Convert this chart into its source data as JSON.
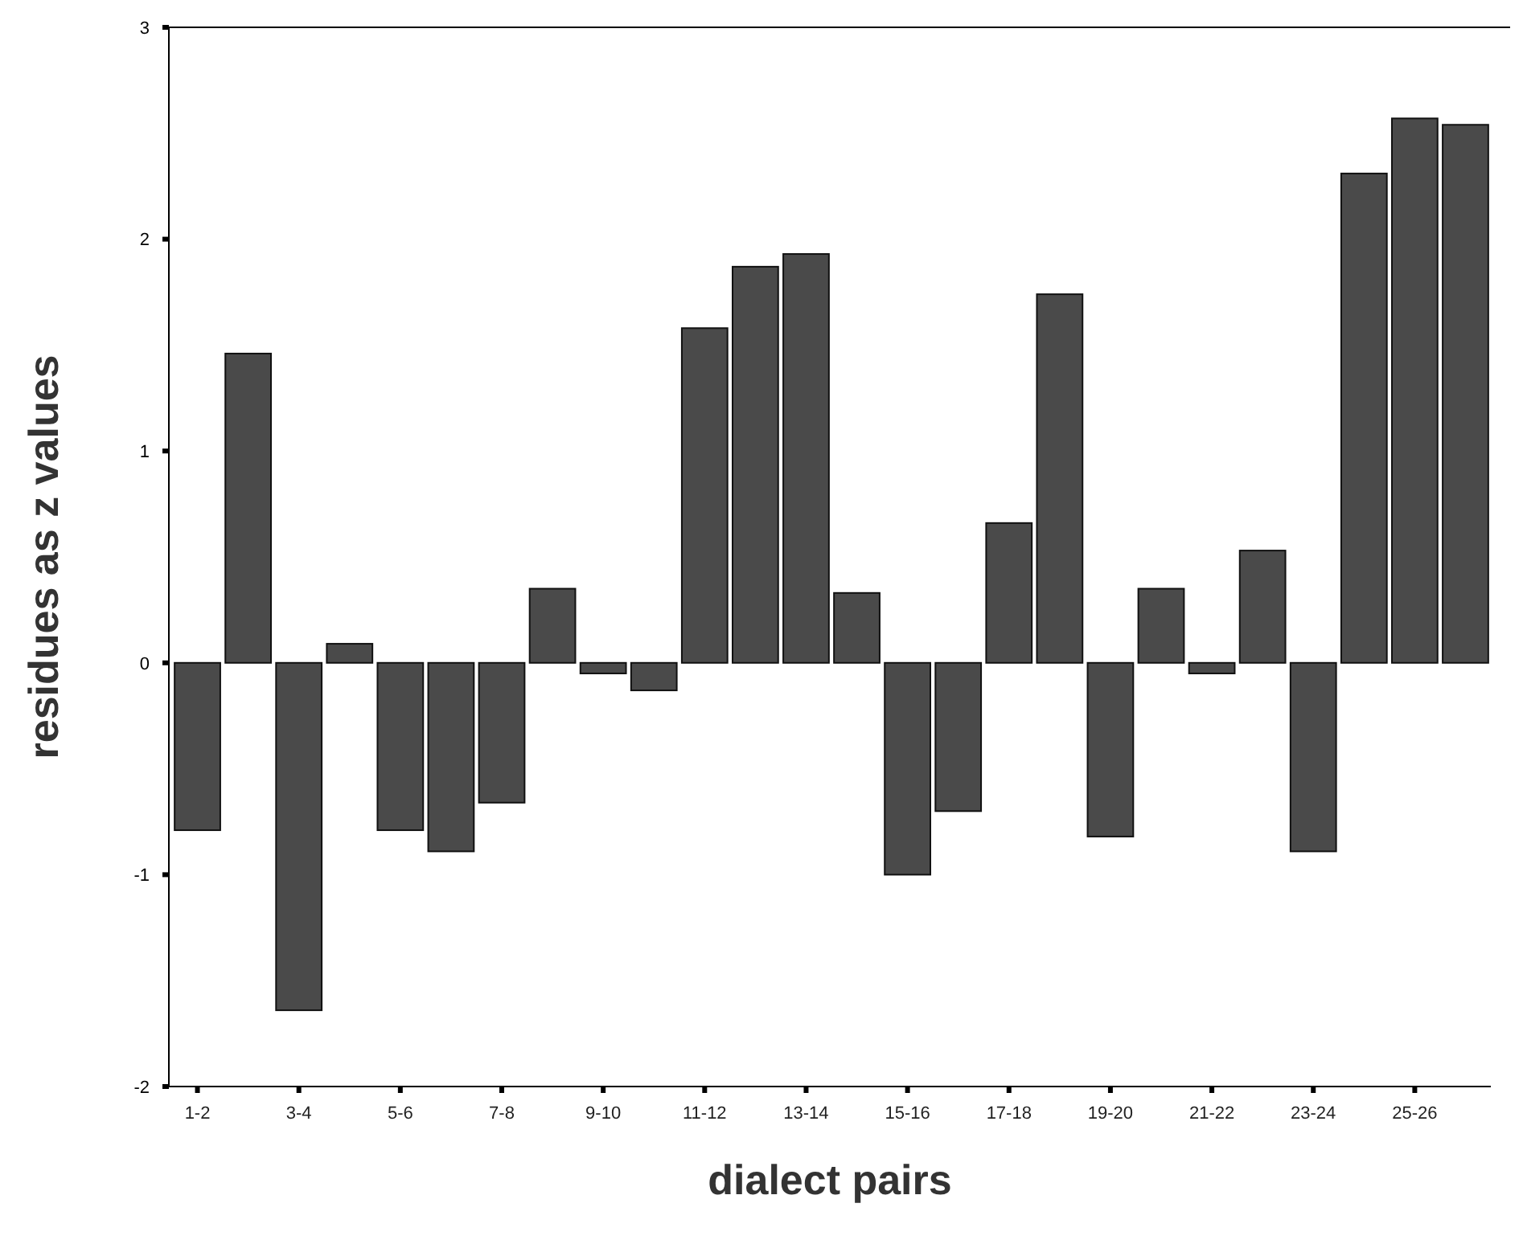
{
  "chart_data": {
    "type": "bar",
    "xlabel": "dialect pairs",
    "ylabel": "residues as z values",
    "categories": [
      "1-2",
      null,
      "3-4",
      null,
      "5-6",
      null,
      "7-8",
      null,
      "9-10",
      null,
      "11-12",
      null,
      "13-14",
      null,
      "15-16",
      null,
      "17-18",
      null,
      "19-20",
      null,
      "21-22",
      null,
      "23-24",
      null,
      "25-26",
      null
    ],
    "values": [
      -0.79,
      1.46,
      -1.64,
      0.09,
      -0.79,
      -0.89,
      -0.66,
      0.35,
      -0.05,
      -0.13,
      1.58,
      1.87,
      1.93,
      0.33,
      -1.0,
      -0.7,
      0.66,
      1.74,
      -0.82,
      0.35,
      -0.05,
      0.53,
      -0.89,
      2.31,
      2.57,
      2.54
    ],
    "color": "#4a4a4a",
    "ylim": [
      -2,
      3
    ],
    "yticks": [
      -2,
      -1,
      0,
      1,
      2,
      3
    ],
    "grid": false
  }
}
